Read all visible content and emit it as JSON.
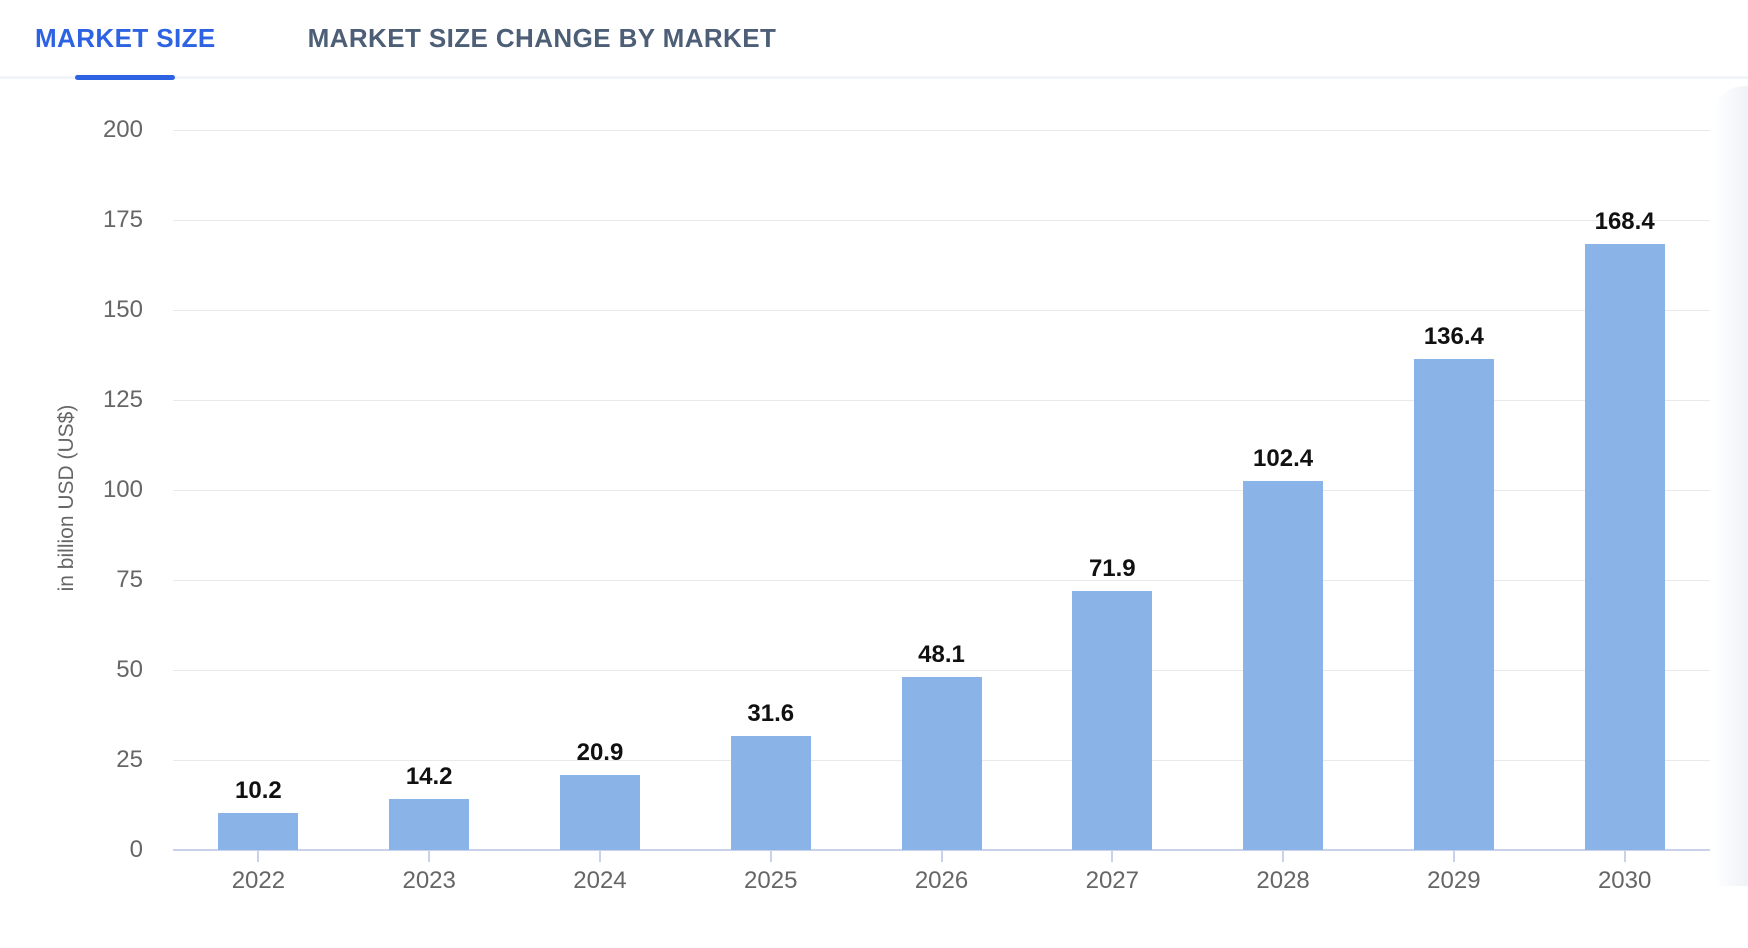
{
  "tabs": [
    {
      "label": "MARKET SIZE",
      "active": true
    },
    {
      "label": "MARKET SIZE CHANGE BY MARKET",
      "active": false
    }
  ],
  "chart_data": {
    "type": "bar",
    "title": "",
    "categories": [
      "2022",
      "2023",
      "2024",
      "2025",
      "2026",
      "2027",
      "2028",
      "2029",
      "2030"
    ],
    "values": [
      10.2,
      14.2,
      20.9,
      31.6,
      48.1,
      71.9,
      102.4,
      136.4,
      168.4
    ],
    "value_labels": [
      "10.2",
      "14.2",
      "20.9",
      "31.6",
      "48.1",
      "71.9",
      "102.4",
      "136.4",
      "168.4"
    ],
    "xlabel": "",
    "ylabel": "in billion USD (US$)",
    "ylim": [
      0,
      200
    ],
    "yticks": [
      0,
      25,
      50,
      75,
      100,
      125,
      150,
      175,
      200
    ],
    "grid": true,
    "legend": "none",
    "bar_color": "#8ab4e7",
    "accent_color": "#2d63e2",
    "axis_line_color": "#c9d2ea",
    "gridline_color": "#e9e9e9",
    "axis_text_color": "#666666",
    "value_label_color": "#111111"
  }
}
